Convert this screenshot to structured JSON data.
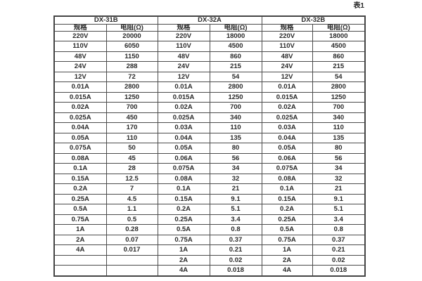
{
  "caption": "表1",
  "colors": {
    "background": "#ffffff",
    "border": "#4c4c4c",
    "text": "#2a2a2a"
  },
  "chart_data": {
    "type": "table",
    "title": "表1",
    "groups": [
      {
        "name": "DX-31B"
      },
      {
        "name": "DX-32A"
      },
      {
        "name": "DX-32B"
      }
    ],
    "sub_headers": [
      "规格",
      "电阻(Ω)",
      "规格",
      "电阻(Ω)",
      "规格",
      "电阻(Ω)"
    ],
    "rows": [
      [
        "220V",
        "20000",
        "220V",
        "18000",
        "220V",
        "18000"
      ],
      [
        "110V",
        "6050",
        "110V",
        "4500",
        "110V",
        "4500"
      ],
      [
        "48V",
        "1150",
        "48V",
        "860",
        "48V",
        "860"
      ],
      [
        "24V",
        "288",
        "24V",
        "215",
        "24V",
        "215"
      ],
      [
        "12V",
        "72",
        "12V",
        "54",
        "12V",
        "54"
      ],
      [
        "0.01A",
        "2800",
        "0.01A",
        "2800",
        "0.01A",
        "2800"
      ],
      [
        "0.015A",
        "1250",
        "0.015A",
        "1250",
        "0.015A",
        "1250"
      ],
      [
        "0.02A",
        "700",
        "0.02A",
        "700",
        "0.02A",
        "700"
      ],
      [
        "0.025A",
        "450",
        "0.025A",
        "340",
        "0.025A",
        "340"
      ],
      [
        "0.04A",
        "170",
        "0.03A",
        "110",
        "0.03A",
        "110"
      ],
      [
        "0.05A",
        "110",
        "0.04A",
        "135",
        "0.04A",
        "135"
      ],
      [
        "0.075A",
        "50",
        "0.05A",
        "80",
        "0.05A",
        "80"
      ],
      [
        "0.08A",
        "45",
        "0.06A",
        "56",
        "0.06A",
        "56"
      ],
      [
        "0.1A",
        "28",
        "0.075A",
        "34",
        "0.075A",
        "34"
      ],
      [
        "0.15A",
        "12.5",
        "0.08A",
        "32",
        "0.08A",
        "32"
      ],
      [
        "0.2A",
        "7",
        "0.1A",
        "21",
        "0.1A",
        "21"
      ],
      [
        "0.25A",
        "4.5",
        "0.15A",
        "9.1",
        "0.15A",
        "9.1"
      ],
      [
        "0.5A",
        "1.1",
        "0.2A",
        "5.1",
        "0.2A",
        "5.1"
      ],
      [
        "0.75A",
        "0.5",
        "0.25A",
        "3.4",
        "0.25A",
        "3.4"
      ],
      [
        "1A",
        "0.28",
        "0.5A",
        "0.8",
        "0.5A",
        "0.8"
      ],
      [
        "2A",
        "0.07",
        "0.75A",
        "0.37",
        "0.75A",
        "0.37"
      ],
      [
        "4A",
        "0.017",
        "1A",
        "0.21",
        "1A",
        "0.21"
      ],
      [
        "",
        "",
        "2A",
        "0.02",
        "2A",
        "0.02"
      ],
      [
        "",
        "",
        "4A",
        "0.018",
        "4A",
        "0.018"
      ]
    ]
  }
}
